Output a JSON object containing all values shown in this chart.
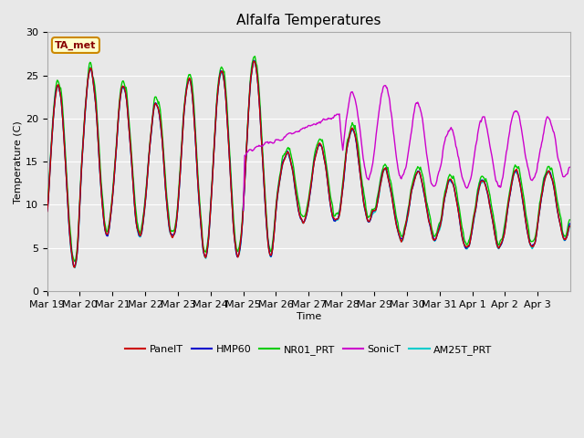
{
  "title": "Alfalfa Temperatures",
  "xlabel": "Time",
  "ylabel": "Temperature (C)",
  "ylim": [
    0,
    30
  ],
  "background_color": "#e8e8e8",
  "plot_bg_color": "#e8e8e8",
  "annotation_text": "TA_met",
  "annotation_bbox": {
    "boxstyle": "round,pad=0.3",
    "facecolor": "#ffffcc",
    "edgecolor": "#cc8800",
    "linewidth": 1.5
  },
  "annotation_color": "#880000",
  "series_colors": {
    "PanelT": "#cc0000",
    "HMP60": "#0000cc",
    "NR01_PRT": "#00cc00",
    "SonicT": "#cc00cc",
    "AM25T_PRT": "#00cccc"
  },
  "series_lw": 1.0,
  "xtick_labels": [
    "Mar 19",
    "Mar 20",
    "Mar 21",
    "Mar 22",
    "Mar 23",
    "Mar 24",
    "Mar 25",
    "Mar 26",
    "Mar 27",
    "Mar 28",
    "Mar 29",
    "Mar 30",
    "Mar 31",
    "Apr 1",
    "Apr 2",
    "Apr 3"
  ],
  "grid_color": "#ffffff",
  "grid_lw": 0.8,
  "figsize": [
    6.4,
    4.8
  ],
  "dpi": 100
}
